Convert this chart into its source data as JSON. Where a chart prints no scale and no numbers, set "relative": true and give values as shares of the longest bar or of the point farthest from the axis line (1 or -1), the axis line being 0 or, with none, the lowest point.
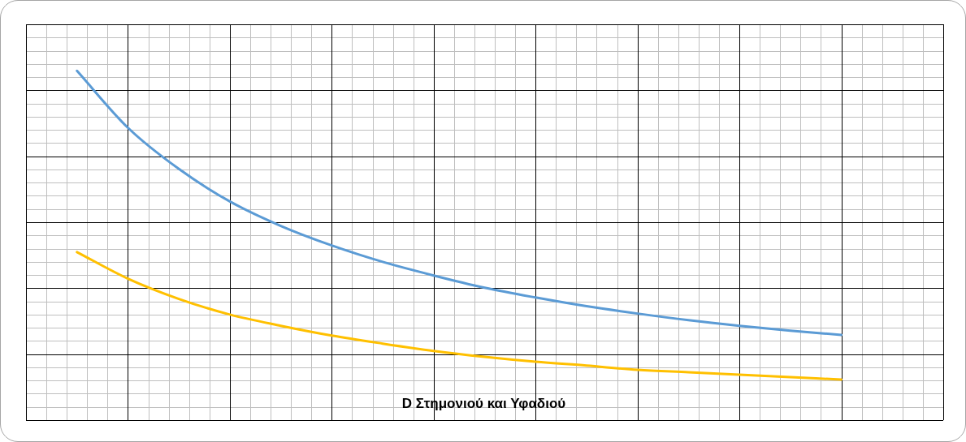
{
  "chart_data": {
    "type": "line",
    "title": "D Στημονιού και Υφαδιού",
    "relative": true,
    "grid": true,
    "legend": false,
    "marker": "none",
    "line_style": "solid",
    "categories": [
      null,
      null,
      null,
      null,
      null,
      null,
      null,
      null,
      null,
      null,
      null,
      null,
      null,
      null,
      null,
      null
    ],
    "series": [
      {
        "color": "#5b9bd5",
        "values": [
          1,
          0.837,
          0.719,
          0.626,
          0.556,
          0.5,
          0.453,
          0.414,
          0.379,
          0.351,
          0.326,
          0.305,
          0.286,
          0.27,
          0.256,
          0.244
        ]
      },
      {
        "color": "#ffc000",
        "values": [
          0.481,
          0.405,
          0.347,
          0.302,
          0.27,
          0.242,
          0.219,
          0.198,
          0.181,
          0.167,
          0.156,
          0.144,
          0.137,
          0.13,
          0.123,
          0.116
        ]
      }
    ]
  }
}
